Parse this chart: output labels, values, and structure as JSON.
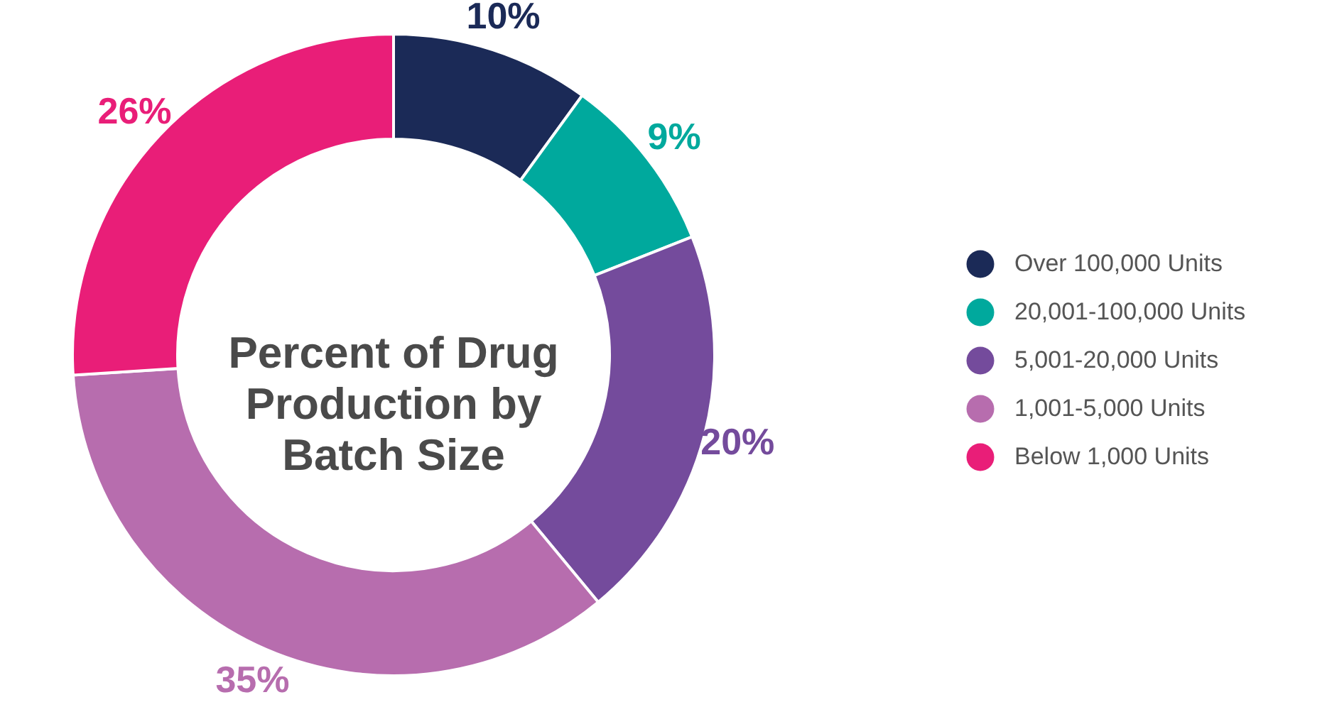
{
  "chart_data": {
    "type": "donut",
    "title": "Percent of Drug\nProduction by\nBatch Size",
    "categories": [
      "Over 100,000 Units",
      "20,001-100,000 Units",
      "5,001-20,000 Units",
      "1,001-5,000 Units",
      "Below 1,000 Units"
    ],
    "values": [
      10,
      9,
      20,
      35,
      26
    ],
    "value_labels": [
      "10%",
      "9%",
      "20%",
      "35%",
      "26%"
    ],
    "colors": [
      "#1b2a57",
      "#00a99d",
      "#744b9c",
      "#b76dae",
      "#e91e78"
    ],
    "legend": "right"
  }
}
